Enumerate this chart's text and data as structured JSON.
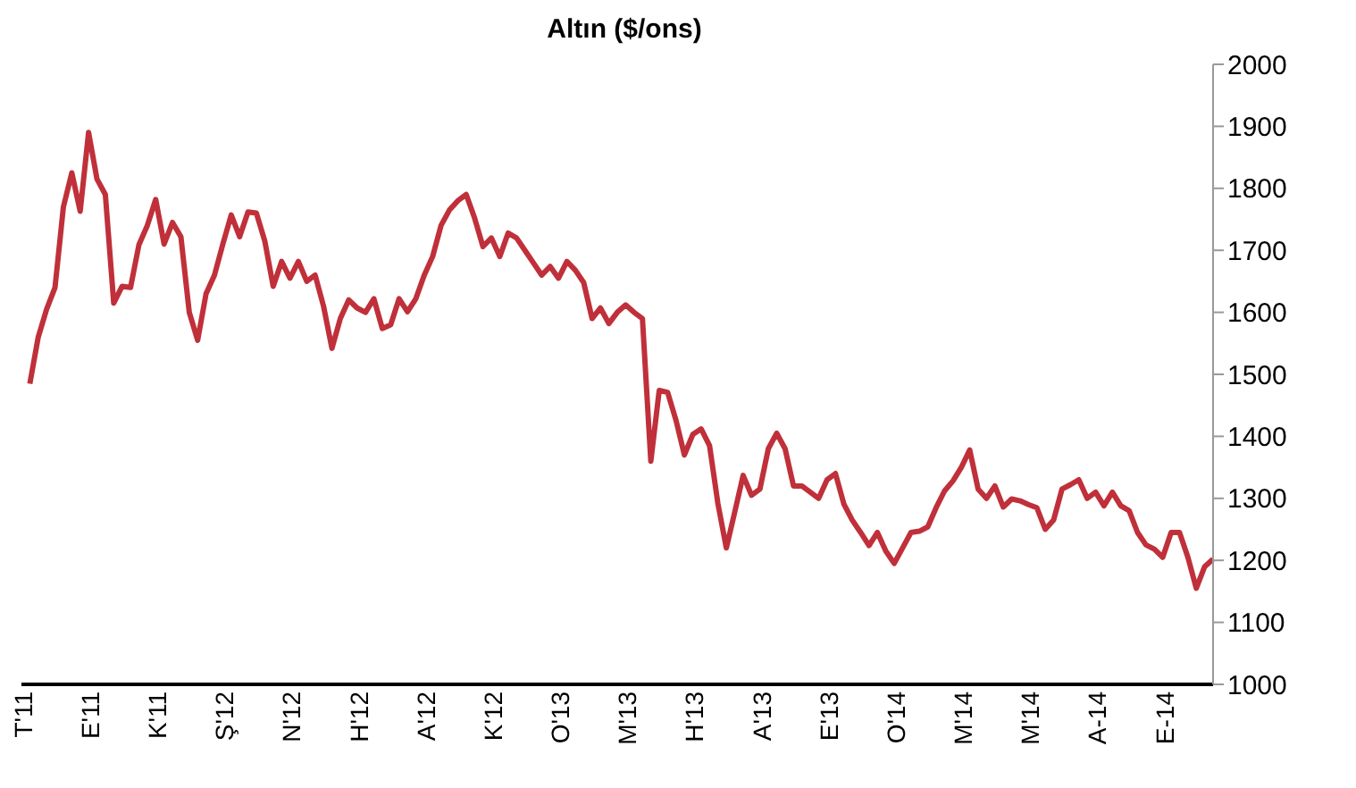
{
  "chart_data": {
    "type": "line",
    "title": "Altın ($/ons)",
    "categories": [
      "T'11",
      null,
      null,
      null,
      null,
      null,
      null,
      null,
      "E'11",
      null,
      null,
      null,
      null,
      null,
      null,
      null,
      "K'11",
      null,
      null,
      null,
      null,
      null,
      null,
      null,
      "Ş'12",
      null,
      null,
      null,
      null,
      null,
      null,
      null,
      "N'12",
      null,
      null,
      null,
      null,
      null,
      null,
      null,
      "H'12",
      null,
      null,
      null,
      null,
      null,
      null,
      null,
      "A'12",
      null,
      null,
      null,
      null,
      null,
      null,
      null,
      "K'12",
      null,
      null,
      null,
      null,
      null,
      null,
      null,
      "O'13",
      null,
      null,
      null,
      null,
      null,
      null,
      null,
      "M'13",
      null,
      null,
      null,
      null,
      null,
      null,
      null,
      "H'13",
      null,
      null,
      null,
      null,
      null,
      null,
      null,
      "A'13",
      null,
      null,
      null,
      null,
      null,
      null,
      null,
      "E'13",
      null,
      null,
      null,
      null,
      null,
      null,
      null,
      "O'14",
      null,
      null,
      null,
      null,
      null,
      null,
      null,
      "M'14",
      null,
      null,
      null,
      null,
      null,
      null,
      null,
      "M'14",
      null,
      null,
      null,
      null,
      null,
      null,
      null,
      "A-14",
      null,
      null,
      null,
      null,
      null,
      null,
      null,
      "E-14",
      null,
      null,
      null,
      null,
      null,
      null
    ],
    "series": [
      {
        "color": "#c0303a",
        "values": [
          null,
          1485,
          1560,
          1605,
          1640,
          1770,
          1825,
          1763,
          1890,
          1815,
          1790,
          1615,
          1642,
          1640,
          1709,
          1740,
          1782,
          1710,
          1745,
          1722,
          1600,
          1555,
          1630,
          1660,
          1710,
          1757,
          1722,
          1762,
          1760,
          1715,
          1642,
          1682,
          1655,
          1682,
          1650,
          1660,
          1610,
          1542,
          1590,
          1620,
          1607,
          1600,
          1622,
          1574,
          1580,
          1622,
          1601,
          1622,
          1660,
          1690,
          1740,
          1765,
          1780,
          1790,
          1752,
          1706,
          1720,
          1690,
          1728,
          1720,
          1700,
          1680,
          1660,
          1674,
          1655,
          1682,
          1668,
          1648,
          1590,
          1607,
          1582,
          1600,
          1612,
          1600,
          1590,
          1360,
          1474,
          1471,
          1426,
          1370,
          1403,
          1412,
          1385,
          1291,
          1220,
          1278,
          1337,
          1305,
          1315,
          1380,
          1405,
          1380,
          1320,
          1320,
          1310,
          1300,
          1330,
          1340,
          1291,
          1265,
          1245,
          1224,
          1245,
          1215,
          1195,
          1220,
          1245,
          1247,
          1254,
          1285,
          1312,
          1328,
          1350,
          1378,
          1315,
          1300,
          1320,
          1286,
          1299,
          1296,
          1290,
          1285,
          1250,
          1265,
          1315,
          1322,
          1330,
          1300,
          1310,
          1288,
          1310,
          1288,
          1280,
          1245,
          1225,
          1218,
          1205,
          1245,
          1245,
          1205,
          1155,
          1190,
          1202
        ]
      }
    ],
    "ylim": [
      1000,
      2000
    ],
    "yticks": [
      1000,
      1100,
      1200,
      1300,
      1400,
      1500,
      1600,
      1700,
      1800,
      1900,
      2000
    ],
    "grid": false,
    "legend": false,
    "marker": "none",
    "line_style": "solid"
  }
}
